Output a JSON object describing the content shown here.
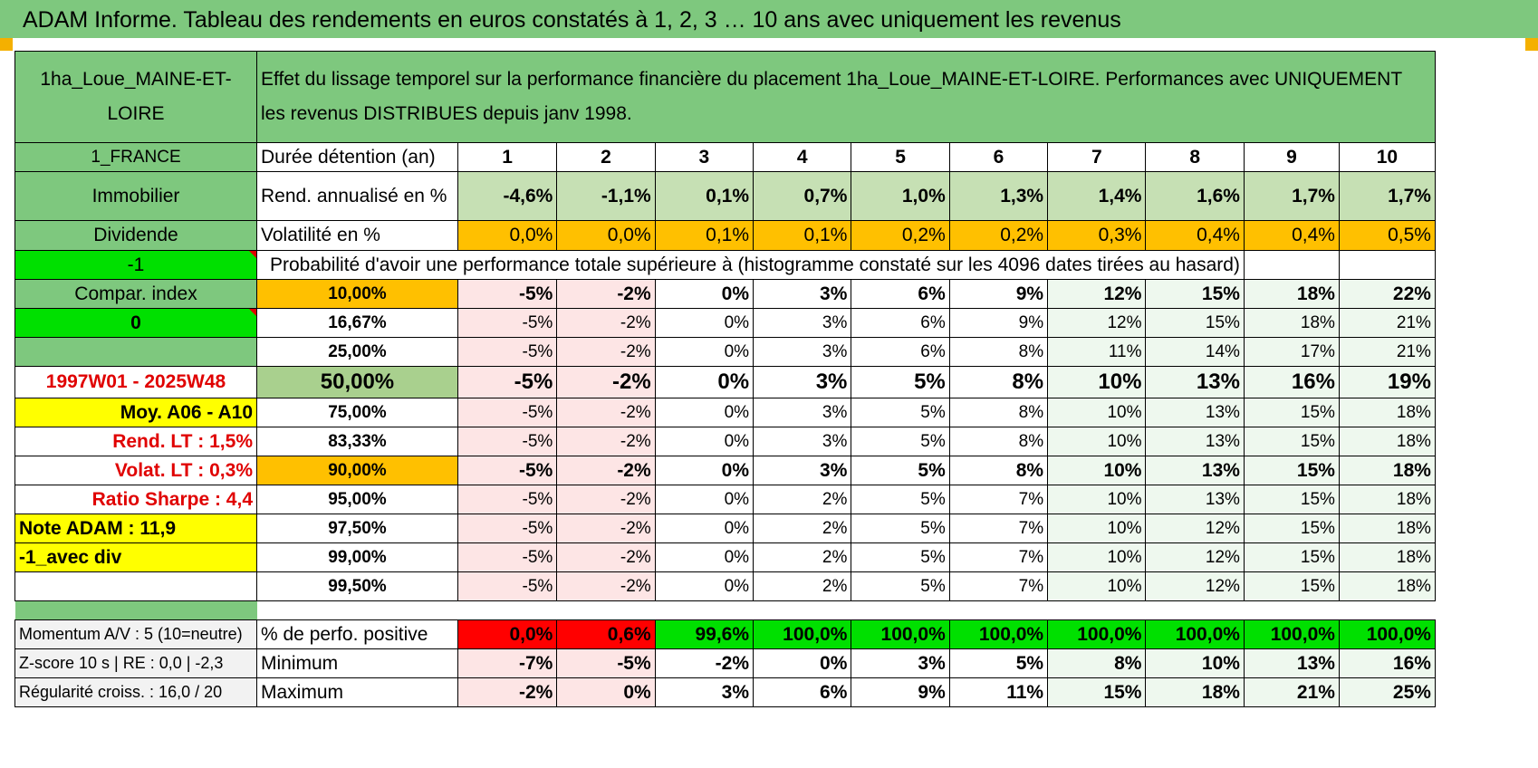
{
  "title": "ADAM Informe. Tableau des rendements en euros constatés à 1, 2, 3 … 10 ans avec uniquement les revenus",
  "asset_name": "1ha_Loue_MAINE-ET-LOIRE",
  "description": "Effet du lissage temporel sur la performance financière du placement 1ha_Loue_MAINE-ET-LOIRE. Performances avec UNIQUEMENT les revenus DISTRIBUES depuis janv 1998.",
  "left": {
    "country": "1_FRANCE",
    "category": "Immobilier",
    "income": "Dividende",
    "minus_one": "-1",
    "compar": "Compar. index",
    "zero": "0",
    "period": "1997W01 - 2025W48",
    "moy": "Moy. A06 - A10",
    "rend_lt": "Rend. LT :    1,5%",
    "volat_lt": "Volat. LT :    0,3%",
    "sharpe": "Ratio Sharpe :     4,4",
    "note": "Note ADAM : 11,9",
    "div": "-1_avec div",
    "momentum": "Momentum A/V : 5 (10=neutre)",
    "zscore": "Z-score 10 s | RE : 0,0 | -2,3",
    "regularite": "Régularité croiss. : 16,0 / 20"
  },
  "labels": {
    "duree": "Durée détention (an)",
    "rend": "Rend. annualisé en %",
    "vol": "Volatilité en %",
    "prob": "Probabilité d'avoir une performance totale supérieure à (histogramme constaté sur les 4096 dates tirées au hasard)",
    "positive": "% de perfo. positive",
    "minimum": "Minimum",
    "maximum": "Maximum"
  },
  "years": [
    "1",
    "2",
    "3",
    "4",
    "5",
    "6",
    "7",
    "8",
    "9",
    "10"
  ],
  "rend": [
    "-4,6%",
    "-1,1%",
    "0,1%",
    "0,7%",
    "1,0%",
    "1,3%",
    "1,4%",
    "1,6%",
    "1,7%",
    "1,7%"
  ],
  "vol": [
    "0,0%",
    "0,0%",
    "0,1%",
    "0,1%",
    "0,2%",
    "0,2%",
    "0,3%",
    "0,4%",
    "0,4%",
    "0,5%"
  ],
  "percentiles": [
    {
      "p": "10,00%",
      "v": [
        "-5%",
        "-2%",
        "0%",
        "3%",
        "6%",
        "9%",
        "12%",
        "15%",
        "18%",
        "22%"
      ]
    },
    {
      "p": "16,67%",
      "v": [
        "-5%",
        "-2%",
        "0%",
        "3%",
        "6%",
        "9%",
        "12%",
        "15%",
        "18%",
        "21%"
      ]
    },
    {
      "p": "25,00%",
      "v": [
        "-5%",
        "-2%",
        "0%",
        "3%",
        "6%",
        "8%",
        "11%",
        "14%",
        "17%",
        "21%"
      ]
    },
    {
      "p": "50,00%",
      "v": [
        "-5%",
        "-2%",
        "0%",
        "3%",
        "5%",
        "8%",
        "10%",
        "13%",
        "16%",
        "19%"
      ]
    },
    {
      "p": "75,00%",
      "v": [
        "-5%",
        "-2%",
        "0%",
        "3%",
        "5%",
        "8%",
        "10%",
        "13%",
        "15%",
        "18%"
      ]
    },
    {
      "p": "83,33%",
      "v": [
        "-5%",
        "-2%",
        "0%",
        "3%",
        "5%",
        "8%",
        "10%",
        "13%",
        "15%",
        "18%"
      ]
    },
    {
      "p": "90,00%",
      "v": [
        "-5%",
        "-2%",
        "0%",
        "3%",
        "5%",
        "8%",
        "10%",
        "13%",
        "15%",
        "18%"
      ]
    },
    {
      "p": "95,00%",
      "v": [
        "-5%",
        "-2%",
        "0%",
        "2%",
        "5%",
        "7%",
        "10%",
        "13%",
        "15%",
        "18%"
      ]
    },
    {
      "p": "97,50%",
      "v": [
        "-5%",
        "-2%",
        "0%",
        "2%",
        "5%",
        "7%",
        "10%",
        "12%",
        "15%",
        "18%"
      ]
    },
    {
      "p": "99,00%",
      "v": [
        "-5%",
        "-2%",
        "0%",
        "2%",
        "5%",
        "7%",
        "10%",
        "12%",
        "15%",
        "18%"
      ]
    },
    {
      "p": "99,50%",
      "v": [
        "-5%",
        "-2%",
        "0%",
        "2%",
        "5%",
        "7%",
        "10%",
        "12%",
        "15%",
        "18%"
      ]
    }
  ],
  "positive": [
    "0,0%",
    "0,6%",
    "99,6%",
    "100,0%",
    "100,0%",
    "100,0%",
    "100,0%",
    "100,0%",
    "100,0%",
    "100,0%"
  ],
  "minimum": [
    "-7%",
    "-5%",
    "-2%",
    "0%",
    "3%",
    "5%",
    "8%",
    "10%",
    "13%",
    "16%"
  ],
  "maximum": [
    "-2%",
    "0%",
    "3%",
    "6%",
    "9%",
    "11%",
    "15%",
    "18%",
    "21%",
    "25%"
  ],
  "colors": {
    "header_green": "#7ec87e",
    "light_green": "#c6e0b4",
    "orange": "#ffc000",
    "yellow": "#ffff00",
    "bright_green": "#00e000",
    "red": "#ff0000",
    "pink": "#fde5e5"
  }
}
